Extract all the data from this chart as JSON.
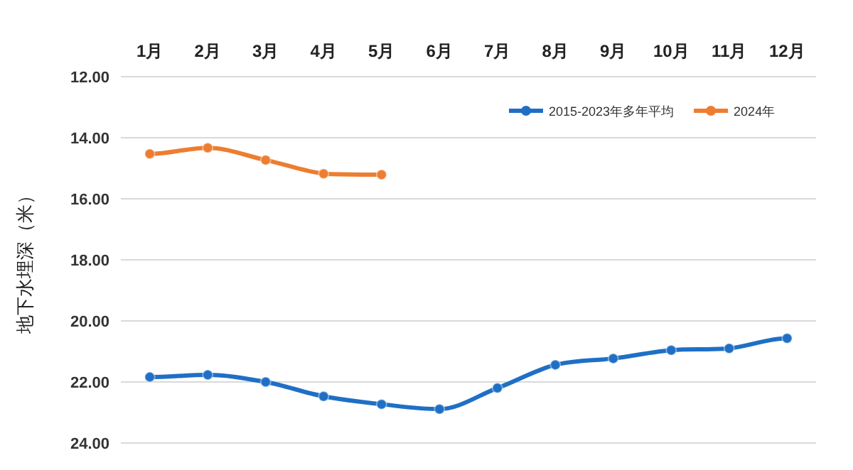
{
  "chart_data": {
    "type": "line",
    "ylabel": "地下水埋深（米）",
    "categories": [
      "1月",
      "2月",
      "3月",
      "4月",
      "5月",
      "6月",
      "7月",
      "8月",
      "9月",
      "10月",
      "11月",
      "12月"
    ],
    "series": [
      {
        "name": "2015-2023年多年平均",
        "color": "#1f6fc5",
        "values": [
          21.84,
          21.77,
          22.0,
          22.47,
          22.73,
          22.89,
          22.2,
          21.44,
          21.23,
          20.96,
          20.9,
          20.57
        ]
      },
      {
        "name": "2024年",
        "color": "#ed7d31",
        "values": [
          14.53,
          14.33,
          14.73,
          15.18,
          15.21,
          null,
          null,
          null,
          null,
          null,
          null,
          null
        ]
      }
    ],
    "ylim": [
      24,
      12
    ],
    "yticks": [
      {
        "value": 12,
        "label": "12.00"
      },
      {
        "value": 14,
        "label": "14.00"
      },
      {
        "value": 16,
        "label": "16.00"
      },
      {
        "value": 18,
        "label": "18.00"
      },
      {
        "value": 20,
        "label": "20.00"
      },
      {
        "value": 22,
        "label": "22.00"
      },
      {
        "value": 24,
        "label": "24.00"
      }
    ],
    "grid": "y",
    "legend": "top right",
    "marker": "circle",
    "line_style": "solid"
  }
}
